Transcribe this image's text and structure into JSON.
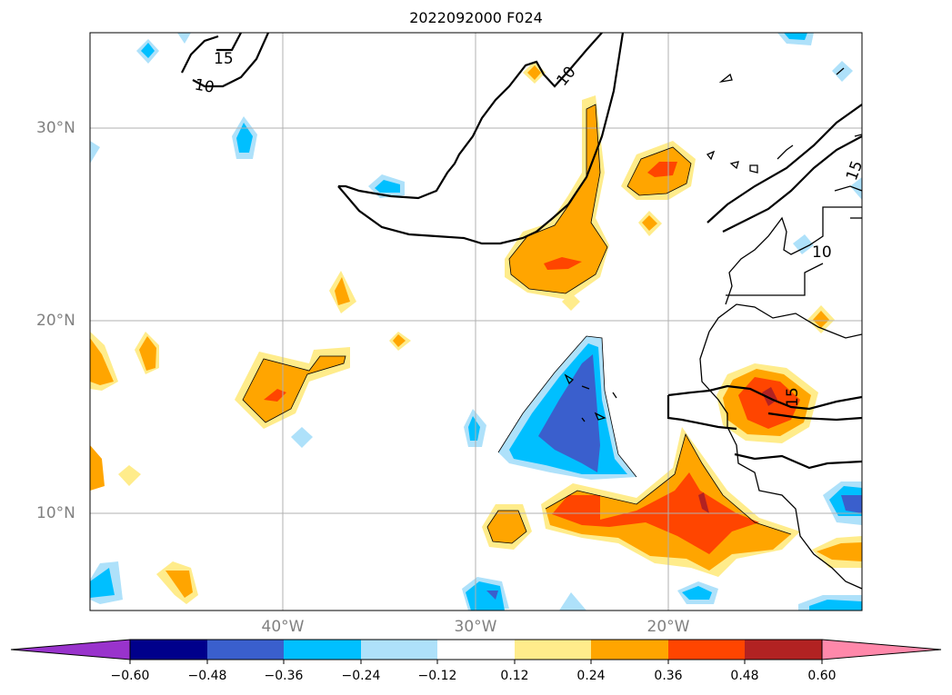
{
  "title": "2022092000 F024",
  "lat_labels": [
    "30°N",
    "20°N",
    "10°N"
  ],
  "lon_labels": [
    "40°W",
    "30°W",
    "20°W"
  ],
  "contour_labels": [
    "15",
    "10",
    "10",
    "15",
    "10",
    "15"
  ],
  "colorbar": {
    "ticks": [
      "−0.60",
      "−0.48",
      "−0.36",
      "−0.24",
      "−0.12",
      "0.12",
      "0.24",
      "0.36",
      "0.48",
      "0.60"
    ],
    "colors": [
      "#9933cc",
      "#00008b",
      "#3a5fcd",
      "#00bfff",
      "#aee1fa",
      "#ffffff",
      "#ffec8b",
      "#ffa500",
      "#ff4500",
      "#b22222",
      "#ff88aa"
    ]
  },
  "legend_colors": {
    "strong_positive": "#ff4500",
    "positive": "#ffa500",
    "weak_positive": "#ffec8b",
    "weak_negative": "#aee1fa",
    "negative": "#00bfff",
    "strong_negative": "#3a5fcd",
    "extreme_positive": "#b22222"
  }
}
